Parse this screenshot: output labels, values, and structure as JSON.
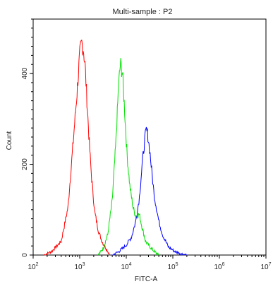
{
  "chart_data": {
    "type": "line",
    "title": "Multi-sample : P2",
    "xlabel": "FITC-A",
    "ylabel": "Count",
    "x_scale": "log",
    "xlim": [
      100,
      10000000
    ],
    "ylim": [
      0,
      520
    ],
    "x_ticks": [
      {
        "value": 100,
        "base": "10",
        "exp": "2"
      },
      {
        "value": 1000,
        "base": "10",
        "exp": "3"
      },
      {
        "value": 10000,
        "base": "10",
        "exp": "4"
      },
      {
        "value": 100000,
        "base": "10",
        "exp": "5"
      },
      {
        "value": 1000000,
        "base": "10",
        "exp": "6"
      },
      {
        "value": 10000000,
        "base": "10",
        "exp": "7"
      }
    ],
    "y_ticks": [
      {
        "value": 0,
        "label": "0"
      },
      {
        "value": 200,
        "label": "200"
      },
      {
        "value": 400,
        "label": "400"
      }
    ],
    "grid": false,
    "legend": "none",
    "series": [
      {
        "color": "#ff0000",
        "x": [
          170,
          250,
          400,
          560,
          700,
          850,
          1000,
          1100,
          1200,
          1300,
          1450,
          1600,
          1800,
          2100,
          2500,
          3000,
          3500,
          4000,
          4500
        ],
        "y": [
          0,
          8,
          30,
          105,
          230,
          340,
          440,
          468,
          455,
          420,
          330,
          250,
          170,
          95,
          55,
          30,
          18,
          8,
          0
        ]
      },
      {
        "color": "#00e000",
        "x": [
          2500,
          3200,
          4000,
          5000,
          6000,
          6800,
          7500,
          8300,
          9200,
          10500,
          12000,
          14000,
          16000,
          19000,
          22000,
          26000,
          32000,
          40000,
          50000
        ],
        "y": [
          0,
          15,
          45,
          120,
          250,
          370,
          422,
          400,
          320,
          215,
          150,
          105,
          85,
          90,
          60,
          30,
          18,
          8,
          0
        ]
      },
      {
        "color": "#0000ff",
        "x": [
          5000,
          7000,
          10000,
          13000,
          16000,
          19000,
          22000,
          25000,
          27000,
          29000,
          32000,
          36000,
          40000,
          50000,
          60000,
          80000,
          110000,
          150000,
          200000
        ],
        "y": [
          0,
          8,
          22,
          40,
          75,
          125,
          200,
          255,
          275,
          265,
          230,
          175,
          130,
          75,
          45,
          18,
          8,
          3,
          0
        ]
      }
    ]
  }
}
